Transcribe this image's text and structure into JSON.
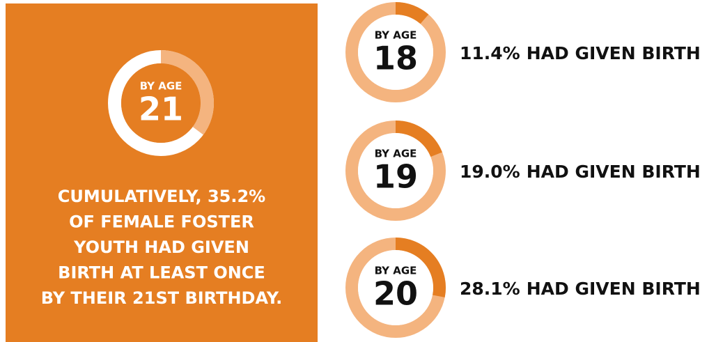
{
  "panel": {
    "age_label": "BY AGE",
    "age": "21",
    "value": 35.2,
    "lines": [
      "CUMULATIVELY, 35.2%",
      "OF FEMALE FOSTER",
      "YOUTH HAD GIVEN",
      "BIRTH AT LEAST ONCE",
      "BY THEIR 21ST BIRTHDAY."
    ]
  },
  "items": [
    {
      "age_label": "BY AGE",
      "age": "18",
      "value": 11.4,
      "value_label": "11.4%",
      "caption": "HAD GIVEN BIRTH"
    },
    {
      "age_label": "BY AGE",
      "age": "19",
      "value": 19.0,
      "value_label": "19.0%",
      "caption": "HAD GIVEN BIRTH"
    },
    {
      "age_label": "BY AGE",
      "age": "20",
      "value": 28.1,
      "value_label": "28.1%",
      "caption": "HAD GIVEN BIRTH"
    }
  ],
  "colors": {
    "orange": "#e57e22",
    "light": "#f4b47f",
    "white": "#ffffff",
    "text": "#111111"
  }
}
